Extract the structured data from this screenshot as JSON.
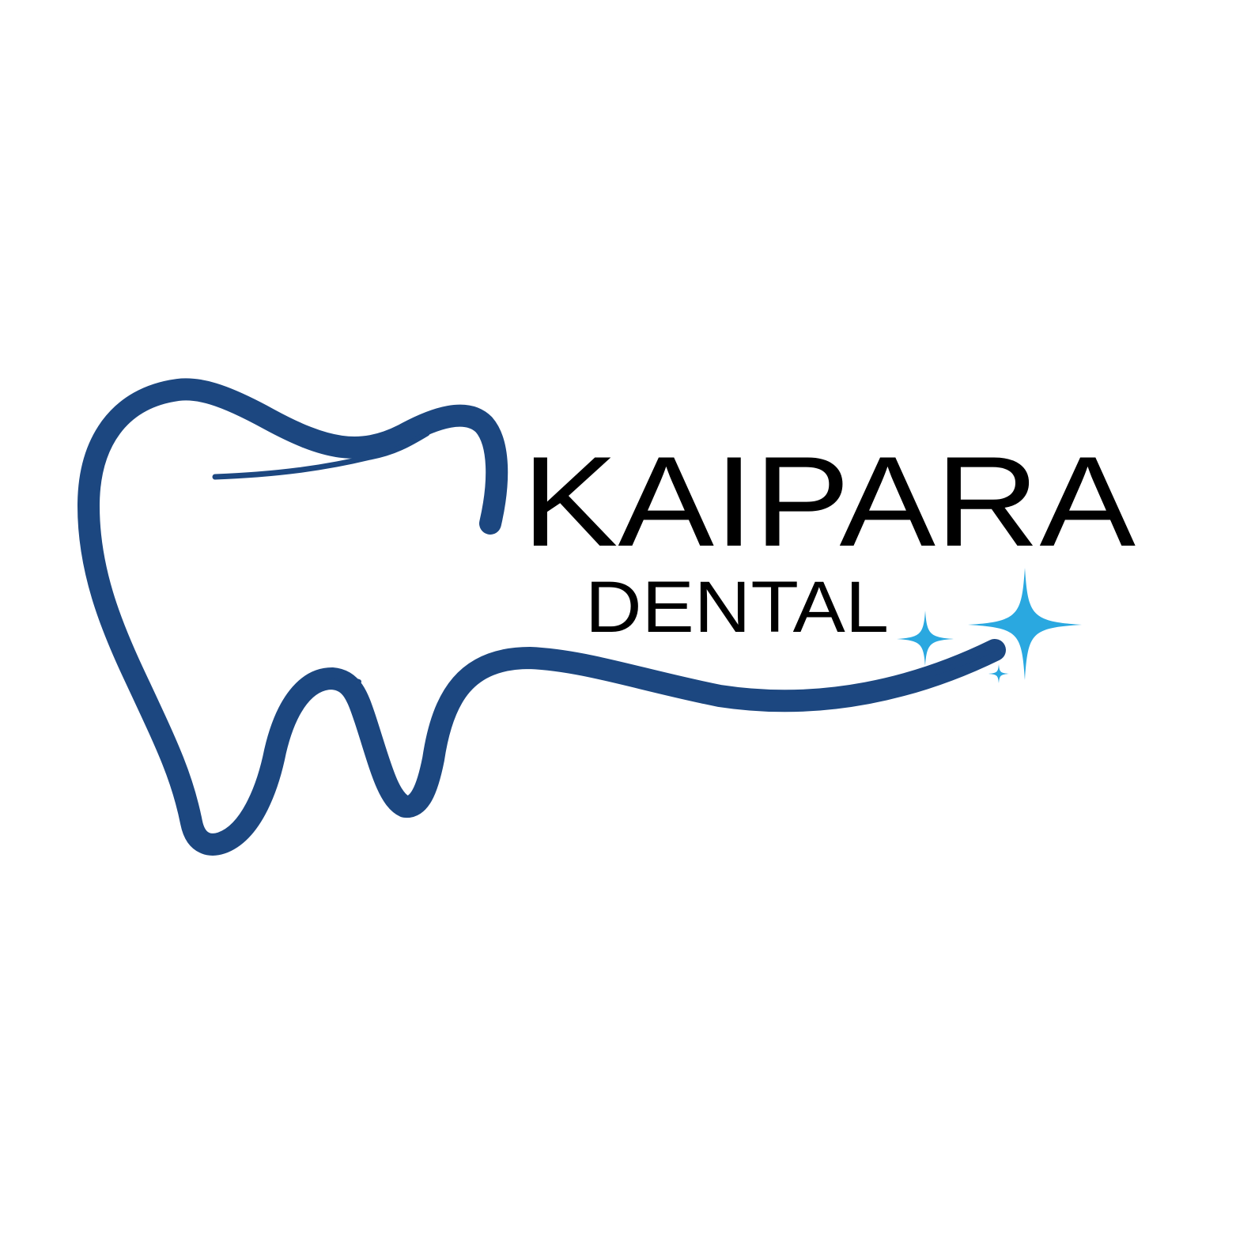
{
  "brand": {
    "name_line1": "KAIPARA",
    "name_line2": "DENTAL"
  },
  "colors": {
    "background": "#ffffff",
    "tooth_outline": "#1c4780",
    "sparkle": "#2aa8e0",
    "text": "#000000"
  },
  "icons": {
    "tooth": "tooth-outline-icon",
    "sparkles": "sparkle-icon"
  }
}
